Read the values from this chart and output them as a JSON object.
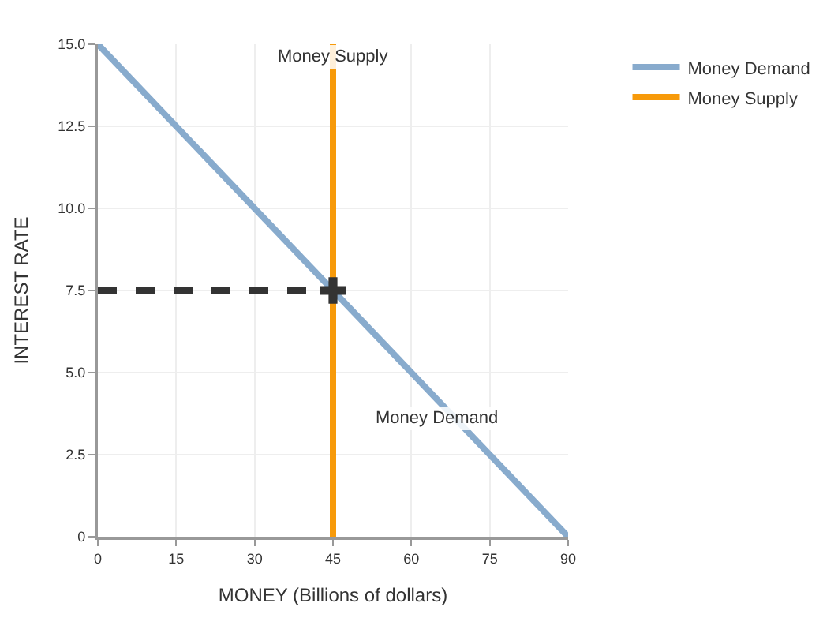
{
  "chart_data": {
    "type": "line",
    "xlabel": "MONEY (Billions of dollars)",
    "ylabel": "INTEREST RATE",
    "xlim": [
      0,
      90
    ],
    "xticks": [
      0,
      15,
      30,
      45,
      60,
      75,
      90
    ],
    "ylim": [
      0,
      15
    ],
    "yticks": [
      {
        "value": 0,
        "label": "0"
      },
      {
        "value": 2.5,
        "label": "2.5"
      },
      {
        "value": 5,
        "label": "5.0"
      },
      {
        "value": 7.5,
        "label": "7.5"
      },
      {
        "value": 10,
        "label": "10.0"
      },
      {
        "value": 12.5,
        "label": "12.5"
      },
      {
        "value": 15,
        "label": "15.0"
      }
    ],
    "grid": true,
    "legend": "right",
    "series": [
      {
        "name": "Money Demand",
        "color": "#88abcd",
        "x": [
          0,
          90
        ],
        "values": [
          15,
          0
        ]
      },
      {
        "name": "Money Supply",
        "color": "#f79a0a",
        "x": [
          45,
          45
        ],
        "values": [
          0,
          15
        ]
      },
      {
        "color": "#333333",
        "x": [
          0,
          45
        ],
        "values": [
          7.5,
          7.5
        ],
        "line_style": "dashed"
      },
      {
        "type": "scatter",
        "color": "#333333",
        "x": [
          45
        ],
        "values": [
          7.5
        ],
        "marker": "cross"
      }
    ],
    "annotations": [
      {
        "text": "Money Supply",
        "x": 45,
        "y": 15
      },
      {
        "text": "Money Demand",
        "x": 65,
        "y": 4
      }
    ]
  }
}
